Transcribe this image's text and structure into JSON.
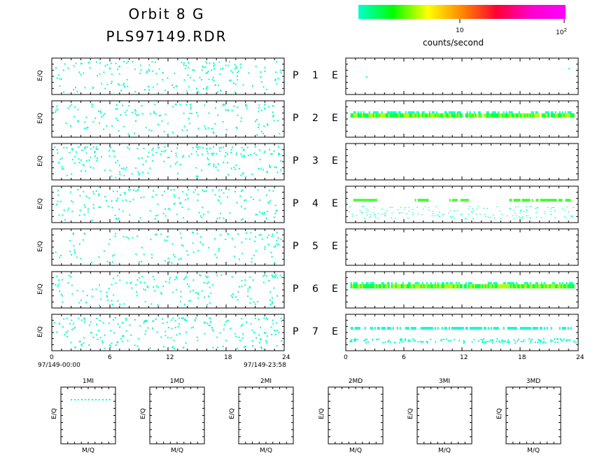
{
  "header": {
    "title_line1": "Orbit  8  G",
    "title_line2": "PLS97149.RDR"
  },
  "colorbar": {
    "label": "counts/second",
    "tick_10": "10",
    "tick_100_base": "10",
    "tick_100_exp": "2",
    "gradient": [
      "#00ffcc",
      "#00ff00",
      "#ffff00",
      "#ff8800",
      "#ff0033",
      "#ff00cc",
      "#ff00ff"
    ]
  },
  "axes": {
    "ylabel": "E/Q",
    "xticks": [
      "0",
      "6",
      "12",
      "18",
      "24"
    ],
    "start_label": "97/149-00:00",
    "end_label": "97/149-23:58"
  },
  "rows": [
    {
      "p": "P",
      "n": "1",
      "e": "E"
    },
    {
      "p": "P",
      "n": "2",
      "e": "E"
    },
    {
      "p": "P",
      "n": "3",
      "e": "E"
    },
    {
      "p": "P",
      "n": "4",
      "e": "E"
    },
    {
      "p": "P",
      "n": "5",
      "e": "E"
    },
    {
      "p": "P",
      "n": "6",
      "e": "E"
    },
    {
      "p": "P",
      "n": "7",
      "e": "E"
    }
  ],
  "mini_panels": [
    {
      "title": "1MI",
      "xlabel": "M/Q",
      "ylabel": "E/Q"
    },
    {
      "title": "1MD",
      "xlabel": "M/Q",
      "ylabel": "E/Q"
    },
    {
      "title": "2MI",
      "xlabel": "M/Q",
      "ylabel": "E/Q"
    },
    {
      "title": "2MD",
      "xlabel": "M/Q",
      "ylabel": "E/Q"
    },
    {
      "title": "3MI",
      "xlabel": "M/Q",
      "ylabel": "E/Q"
    },
    {
      "title": "3MD",
      "xlabel": "M/Q",
      "ylabel": "E/Q"
    }
  ],
  "chart_data": {
    "type": "heatmap",
    "x_range": [
      0,
      24
    ],
    "x_unit": "hours",
    "scale": "log counts/second",
    "left_panels_activity": [
      0.12,
      0.1,
      0.14,
      0.11,
      0.08,
      0.11,
      0.14
    ],
    "right_panels_bands": [
      [],
      [
        {
          "from": 0.2,
          "to": 23.8,
          "intensity": "high"
        }
      ],
      [],
      [
        {
          "from": 0.5,
          "to": 3,
          "intensity": "mid"
        },
        {
          "from": 7,
          "to": 8.5,
          "intensity": "mid"
        },
        {
          "from": 10.5,
          "to": 12.8,
          "intensity": "mid"
        },
        {
          "from": 17,
          "to": 23.5,
          "intensity": "mid"
        }
      ],
      [],
      [
        {
          "from": 0.2,
          "to": 23.8,
          "intensity": "high"
        }
      ],
      [
        {
          "from": 0.2,
          "to": 23.8,
          "intensity": "low"
        }
      ]
    ]
  }
}
